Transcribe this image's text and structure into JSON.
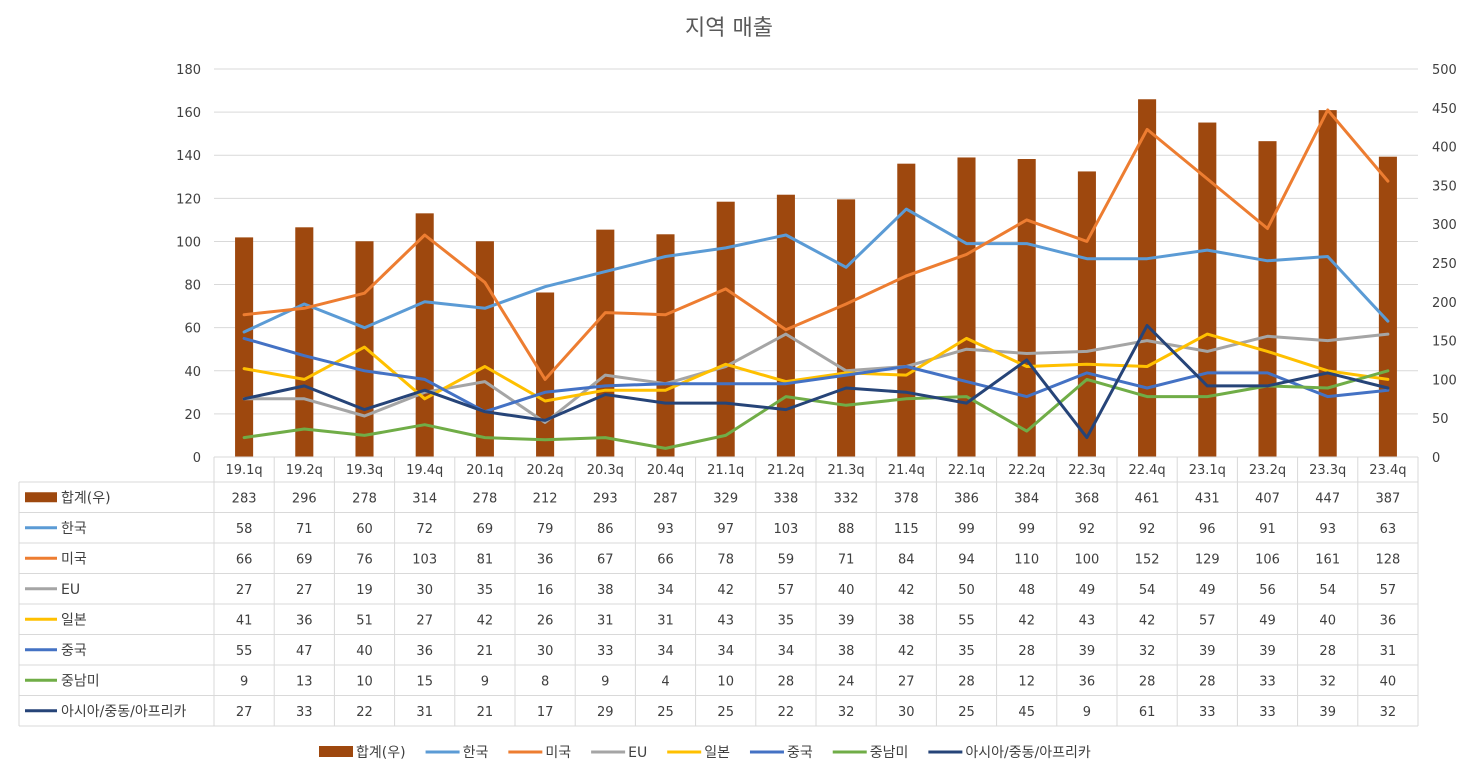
{
  "chart_data": {
    "type": "bar+line",
    "title": "지역 매출",
    "categories": [
      "19.1q",
      "19.2q",
      "19.3q",
      "19.4q",
      "20.1q",
      "20.2q",
      "20.3q",
      "20.4q",
      "21.1q",
      "21.2q",
      "21.3q",
      "21.4q",
      "22.1q",
      "22.2q",
      "22.3q",
      "22.4q",
      "23.1q",
      "23.2q",
      "23.3q",
      "23.4q"
    ],
    "y_left": {
      "min": 0,
      "max": 180,
      "ticks": [
        "0",
        "20",
        "40",
        "60",
        "80",
        "100",
        "120",
        "140",
        "160",
        "180"
      ]
    },
    "y_right": {
      "min": 0,
      "max": 500,
      "ticks": [
        "0",
        "50",
        "100",
        "150",
        "200",
        "250",
        "300",
        "350",
        "400",
        "450",
        "500"
      ]
    },
    "grid": true,
    "legend_position": "bottom",
    "series": [
      {
        "name": "합계(우)",
        "type": "bar",
        "axis": "right",
        "color": "#9E480E",
        "values": [
          283,
          296,
          278,
          314,
          278,
          212,
          293,
          287,
          329,
          338,
          332,
          378,
          386,
          384,
          368,
          461,
          431,
          407,
          447,
          387
        ]
      },
      {
        "name": "한국",
        "type": "line",
        "axis": "left",
        "color": "#5B9BD5",
        "values": [
          58,
          71,
          60,
          72,
          69,
          79,
          86,
          93,
          97,
          103,
          88,
          115,
          99,
          99,
          92,
          92,
          96,
          91,
          93,
          63
        ]
      },
      {
        "name": "미국",
        "type": "line",
        "axis": "left",
        "color": "#ED7D31",
        "values": [
          66,
          69,
          76,
          103,
          81,
          36,
          67,
          66,
          78,
          59,
          71,
          84,
          94,
          110,
          100,
          152,
          129,
          106,
          161,
          128
        ]
      },
      {
        "name": "EU",
        "type": "line",
        "axis": "left",
        "color": "#A5A5A5",
        "values": [
          27,
          27,
          19,
          30,
          35,
          16,
          38,
          34,
          42,
          57,
          40,
          42,
          50,
          48,
          49,
          54,
          49,
          56,
          54,
          57
        ]
      },
      {
        "name": "일본",
        "type": "line",
        "axis": "left",
        "color": "#FFC000",
        "values": [
          41,
          36,
          51,
          27,
          42,
          26,
          31,
          31,
          43,
          35,
          39,
          38,
          55,
          42,
          43,
          42,
          57,
          49,
          40,
          36
        ]
      },
      {
        "name": "중국",
        "type": "line",
        "axis": "left",
        "color": "#4472C4",
        "values": [
          55,
          47,
          40,
          36,
          21,
          30,
          33,
          34,
          34,
          34,
          38,
          42,
          35,
          28,
          39,
          32,
          39,
          39,
          28,
          31
        ]
      },
      {
        "name": "중남미",
        "type": "line",
        "axis": "left",
        "color": "#70AD47",
        "values": [
          9,
          13,
          10,
          15,
          9,
          8,
          9,
          4,
          10,
          28,
          24,
          27,
          28,
          12,
          36,
          28,
          28,
          33,
          32,
          40
        ]
      },
      {
        "name": "아시아/중동/아프리카",
        "type": "line",
        "axis": "left",
        "color": "#264478",
        "values": [
          27,
          33,
          22,
          31,
          21,
          17,
          29,
          25,
          25,
          22,
          32,
          30,
          25,
          45,
          9,
          61,
          33,
          33,
          39,
          32
        ]
      }
    ]
  }
}
